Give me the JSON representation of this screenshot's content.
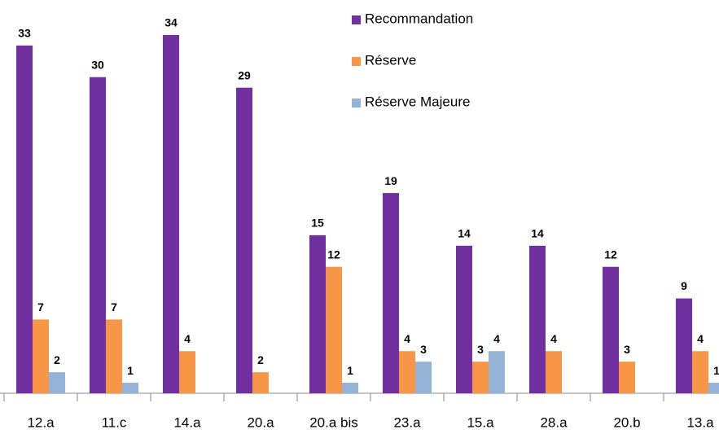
{
  "chart_data": {
    "type": "bar",
    "categories": [
      "12.a",
      "11.c",
      "14.a",
      "20.a",
      "20.a bis",
      "23.a",
      "15.a",
      "28.a",
      "20.b",
      "13.a"
    ],
    "series": [
      {
        "name": "Recommandation",
        "color": "#7030a0",
        "values": [
          33,
          30,
          34,
          29,
          15,
          19,
          14,
          14,
          12,
          9
        ]
      },
      {
        "name": "Réserve",
        "color": "#f79646",
        "values": [
          7,
          7,
          4,
          2,
          12,
          4,
          3,
          4,
          3,
          4
        ]
      },
      {
        "name": "Réserve Majeure",
        "color": "#95b3d7",
        "values": [
          2,
          1,
          null,
          null,
          1,
          3,
          4,
          null,
          null,
          1
        ]
      }
    ],
    "ylim": [
      0,
      35
    ],
    "legend": "top-right",
    "grid": false
  }
}
